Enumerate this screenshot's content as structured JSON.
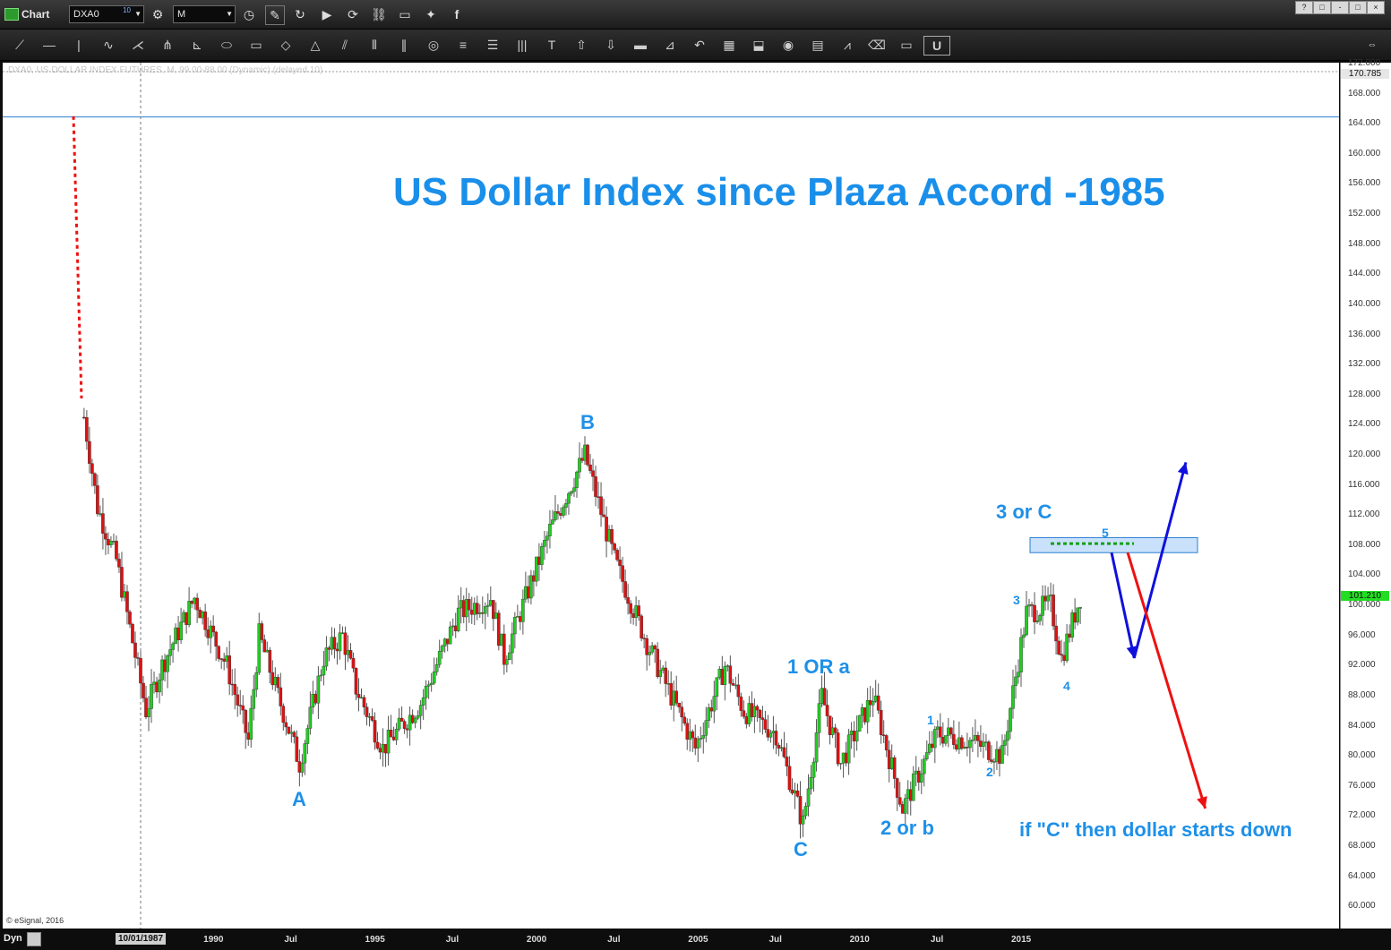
{
  "window": {
    "title": "Chart",
    "symbol": "DXA0",
    "symbol_badge": "10",
    "interval": "M",
    "win_buttons": [
      "?",
      "□",
      "-",
      "□",
      "×"
    ]
  },
  "toolbar": {
    "tools": [
      "line-tool-icon",
      "horizontal-line-icon",
      "vertical-line-icon",
      "wave-icon",
      "fan-icon",
      "pitchfork-icon",
      "gann-icon",
      "ellipse-icon",
      "rectangle-icon",
      "diamond-icon",
      "triangle-icon",
      "channel-icon",
      "cycle-icon",
      "parallel-icon",
      "circle-icon",
      "fib-icon",
      "levels-icon",
      "bars-icon",
      "text-icon",
      "arrow-up-icon",
      "arrow-down-icon",
      "bar-icon",
      "chart-axes-icon",
      "back-arrow-icon",
      "grid-icon",
      "mob-icon",
      "eye-icon",
      "pti-icon",
      "wave-line-icon",
      "eraser-icon",
      "comment-icon",
      "magnet-icon"
    ]
  },
  "chart": {
    "header_text": "DXA0, US DOLLAR INDEX FUTURES, M, 99.00-88.00 (Dynamic) (delayed 10)",
    "title": "US Dollar Index since Plaza Accord -1985",
    "copyright": "© eSignal, 2016",
    "last_price": "101.210",
    "top_price": "170.785",
    "crosshair_date": "10/01/1987",
    "dyn_label": "Dyn",
    "annotations": {
      "A": "A",
      "B": "B",
      "C": "C",
      "one_or_a": "1 OR a",
      "two_or_b": "2 or b",
      "three_or_c": "3 or C",
      "w1": "1",
      "w2": "2",
      "w3": "3",
      "w4": "4",
      "w5": "5",
      "if_c": "if \"C\" then dollar starts down"
    },
    "colors": {
      "up": "#22cc22",
      "down": "#dd1111",
      "annotation": "#1e90e8",
      "blue_arrow": "#1010dd",
      "red_arrow": "#ee1111"
    }
  },
  "chart_data": {
    "type": "candlestick",
    "title": "US Dollar Index since Plaza Accord -1985",
    "ylim": [
      58,
      172
    ],
    "yticks": [
      60,
      64,
      68,
      72,
      76,
      80,
      84,
      88,
      92,
      96,
      100,
      104,
      108,
      112,
      116,
      120,
      124,
      128,
      132,
      136,
      140,
      144,
      148,
      152,
      156,
      160,
      164,
      168,
      172
    ],
    "xticks": [
      "1990",
      "Jul",
      "1995",
      "Jul",
      "2000",
      "Jul",
      "2005",
      "Jul",
      "2010",
      "Jul",
      "2015"
    ],
    "series": [
      {
        "values": [
          [
            "1986-01",
            125
          ],
          [
            "1986-06",
            113
          ],
          [
            "1987-01",
            106
          ],
          [
            "1987-06",
            97
          ],
          [
            "1987-12",
            86
          ],
          [
            "1988-06",
            92
          ],
          [
            "1989-06",
            101
          ],
          [
            "1990-06",
            92
          ],
          [
            "1991-02",
            82
          ],
          [
            "1991-06",
            96
          ],
          [
            "1992-01",
            88
          ],
          [
            "1992-09",
            79
          ],
          [
            "1993-06",
            93
          ],
          [
            "1994-01",
            96
          ],
          [
            "1994-06",
            89
          ],
          [
            "1995-04",
            81
          ],
          [
            "1996-06",
            87
          ],
          [
            "1997-08",
            99
          ],
          [
            "1998-08",
            101
          ],
          [
            "1999-01",
            93
          ],
          [
            "2000-06",
            110
          ],
          [
            "2001-07",
            120
          ],
          [
            "2002-06",
            106
          ],
          [
            "2003-06",
            95
          ],
          [
            "2004-12",
            81
          ],
          [
            "2005-11",
            92
          ],
          [
            "2006-06",
            86
          ],
          [
            "2007-06",
            83
          ],
          [
            "2008-04",
            71
          ],
          [
            "2008-11",
            88
          ],
          [
            "2009-06",
            79
          ],
          [
            "2010-06",
            88
          ],
          [
            "2011-05",
            73
          ],
          [
            "2012-06",
            83
          ],
          [
            "2013-06",
            82
          ],
          [
            "2014-06",
            80
          ],
          [
            "2015-03",
            99
          ],
          [
            "2015-12",
            100
          ],
          [
            "2016-04",
            93
          ],
          [
            "2016-11",
            101.2
          ]
        ]
      }
    ],
    "zone": {
      "low": 107,
      "high": 109
    },
    "dotted_level": 108.2,
    "projection_blue": [
      [
        2017.8,
        107
      ],
      [
        2018.5,
        93
      ],
      [
        2020.1,
        119
      ]
    ],
    "projection_red": [
      [
        2018.3,
        107
      ],
      [
        2020.7,
        73
      ]
    ]
  }
}
